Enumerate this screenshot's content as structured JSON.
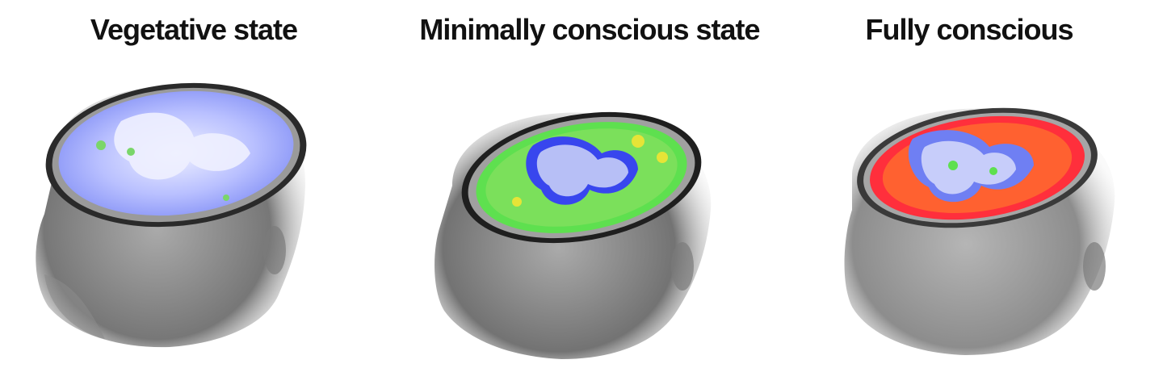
{
  "panels": [
    {
      "title": "Vegetative state",
      "brain_colors": [
        "#7f8cf5",
        "#b9c0ff",
        "#e6e9ff",
        "#7ad66a"
      ]
    },
    {
      "title": "Minimally conscious state",
      "brain_colors": [
        "#3846ee",
        "#b7bff6",
        "#5ee04f",
        "#e6e437"
      ]
    },
    {
      "title": "Fully conscious",
      "brain_colors": [
        "#ff2f3c",
        "#ff6a2e",
        "#6f7ff3",
        "#c7cdfa"
      ]
    }
  ],
  "head_color": "#6b6b6b"
}
